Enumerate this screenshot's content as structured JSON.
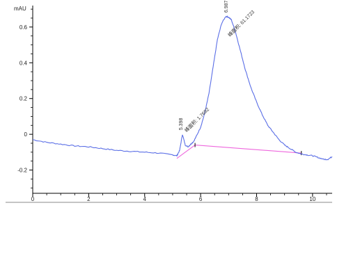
{
  "chart_data": {
    "type": "line",
    "ylabel": "mAU",
    "xlim": [
      0,
      10.7
    ],
    "ylim": [
      -0.33,
      0.72
    ],
    "x_ticks": [
      0,
      2,
      4,
      6,
      8,
      10
    ],
    "y_ticks": [
      -0.2,
      0,
      0.2,
      0.4,
      0.6
    ],
    "x_tick_labels": [
      "0",
      "2",
      "4",
      "6",
      "8",
      "10"
    ],
    "y_tick_labels": [
      "-0.2",
      "0",
      "0.2",
      "0.4",
      "0.6"
    ],
    "series": [
      {
        "x": [
          0.0,
          0.5,
          1.0,
          1.5,
          2.0,
          2.5,
          3.0,
          3.5,
          4.0,
          4.5,
          5.0,
          5.15,
          5.25,
          5.35,
          5.45,
          5.55,
          5.65,
          5.75,
          5.85,
          6.0,
          6.15,
          6.3,
          6.45,
          6.6,
          6.75,
          6.9,
          7.0,
          7.1,
          7.25,
          7.4,
          7.6,
          7.8,
          8.0,
          8.2,
          8.4,
          8.6,
          8.8,
          9.0,
          9.2,
          9.4,
          9.6,
          9.8,
          10.0,
          10.2,
          10.4,
          10.55,
          10.7
        ],
        "y": [
          -0.03,
          -0.045,
          -0.055,
          -0.065,
          -0.07,
          -0.08,
          -0.09,
          -0.095,
          -0.1,
          -0.105,
          -0.115,
          -0.12,
          -0.09,
          0.0,
          -0.06,
          -0.07,
          -0.055,
          -0.04,
          -0.01,
          0.04,
          0.12,
          0.23,
          0.38,
          0.53,
          0.62,
          0.66,
          0.655,
          0.64,
          0.57,
          0.48,
          0.36,
          0.26,
          0.18,
          0.11,
          0.05,
          0.01,
          -0.03,
          -0.06,
          -0.08,
          -0.1,
          -0.11,
          -0.115,
          -0.12,
          -0.13,
          -0.14,
          -0.14,
          -0.125
        ]
      }
    ],
    "integration_lines": [
      {
        "x": [
          5.15,
          5.8
        ],
        "y": [
          -0.135,
          -0.06
        ]
      },
      {
        "x": [
          5.8,
          9.6
        ],
        "y": [
          -0.06,
          -0.105
        ]
      }
    ],
    "peak_annotations": [
      {
        "text": "5.398",
        "x": 5.4,
        "y": 0.0
      },
      {
        "text": "峰面积: 1.7682",
        "x": 5.45,
        "y": -0.005
      },
      {
        "text": "6.987",
        "x": 6.99,
        "y": 0.665
      },
      {
        "text": "峰面积: 61.1723",
        "x": 7.0,
        "y": 0.56
      }
    ]
  }
}
